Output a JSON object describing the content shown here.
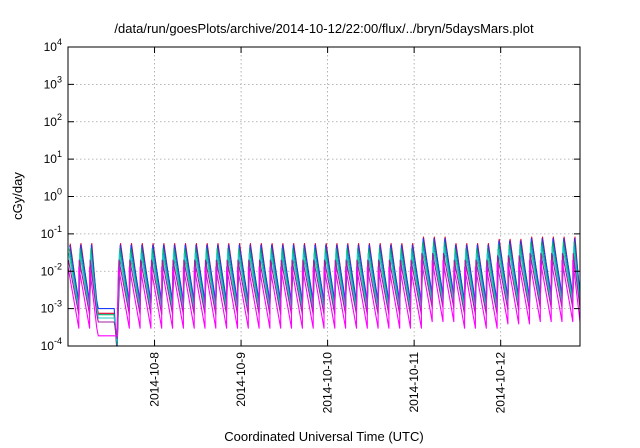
{
  "chart_data": {
    "type": "line",
    "title": "/data/run/goesPlots/archive/2014-10-12/22:00/flux/../bryn/5daysMars.plot",
    "xlabel": "Coordinated Universal Time (UTC)",
    "ylabel": "cGy/day",
    "y_scale": "log",
    "ylim": [
      0.0001,
      10000
    ],
    "y_ticks": [
      {
        "base": "10",
        "exp": "-4",
        "value": 0.0001
      },
      {
        "base": "10",
        "exp": "-3",
        "value": 0.001
      },
      {
        "base": "10",
        "exp": "-2",
        "value": 0.01
      },
      {
        "base": "10",
        "exp": "-1",
        "value": 0.1
      },
      {
        "base": "10",
        "exp": "0",
        "value": 1
      },
      {
        "base": "10",
        "exp": "1",
        "value": 10
      },
      {
        "base": "10",
        "exp": "2",
        "value": 100
      },
      {
        "base": "10",
        "exp": "3",
        "value": 1000
      },
      {
        "base": "10",
        "exp": "4",
        "value": 10000
      }
    ],
    "xlim": [
      "2014-10-07 00:00",
      "2014-10-12 22:00"
    ],
    "x_ticks": [
      "2014-10-8",
      "2014-10-9",
      "2014-10-10",
      "2014-10-11",
      "2014-10-12"
    ],
    "grid": true,
    "legend": "none",
    "series": [
      {
        "color": "#e0002a",
        "peak": 0.055,
        "trough": 0.0012
      },
      {
        "color": "#1a3cff",
        "peak": 0.05,
        "trough": 0.0016
      },
      {
        "color": "#00b070",
        "peak": 0.04,
        "trough": 0.0011
      },
      {
        "color": "#20c8c8",
        "peak": 0.03,
        "trough": 0.0009
      },
      {
        "color": "#a020a0",
        "peak": 0.02,
        "trough": 0.0007
      },
      {
        "color": "#ff00ff",
        "peak": 0.013,
        "trough": 0.0003
      }
    ],
    "features": {
      "cycle_hours": 3,
      "gap": {
        "start": "2014-10-07 08:00",
        "end": "2014-10-07 14:00",
        "flat_value": 0.001,
        "dip_value": 0.0001
      },
      "elevated_segments": [
        {
          "start": "2014-10-11 00:00",
          "end": "2014-10-11 09:00",
          "factor": 1.5
        },
        {
          "start": "2014-10-11 22:00",
          "end": "2014-10-12 05:00",
          "factor": 1.3
        },
        {
          "start": "2014-10-12 08:00",
          "end": "2014-10-12 22:00",
          "factor": 1.5
        }
      ]
    }
  }
}
